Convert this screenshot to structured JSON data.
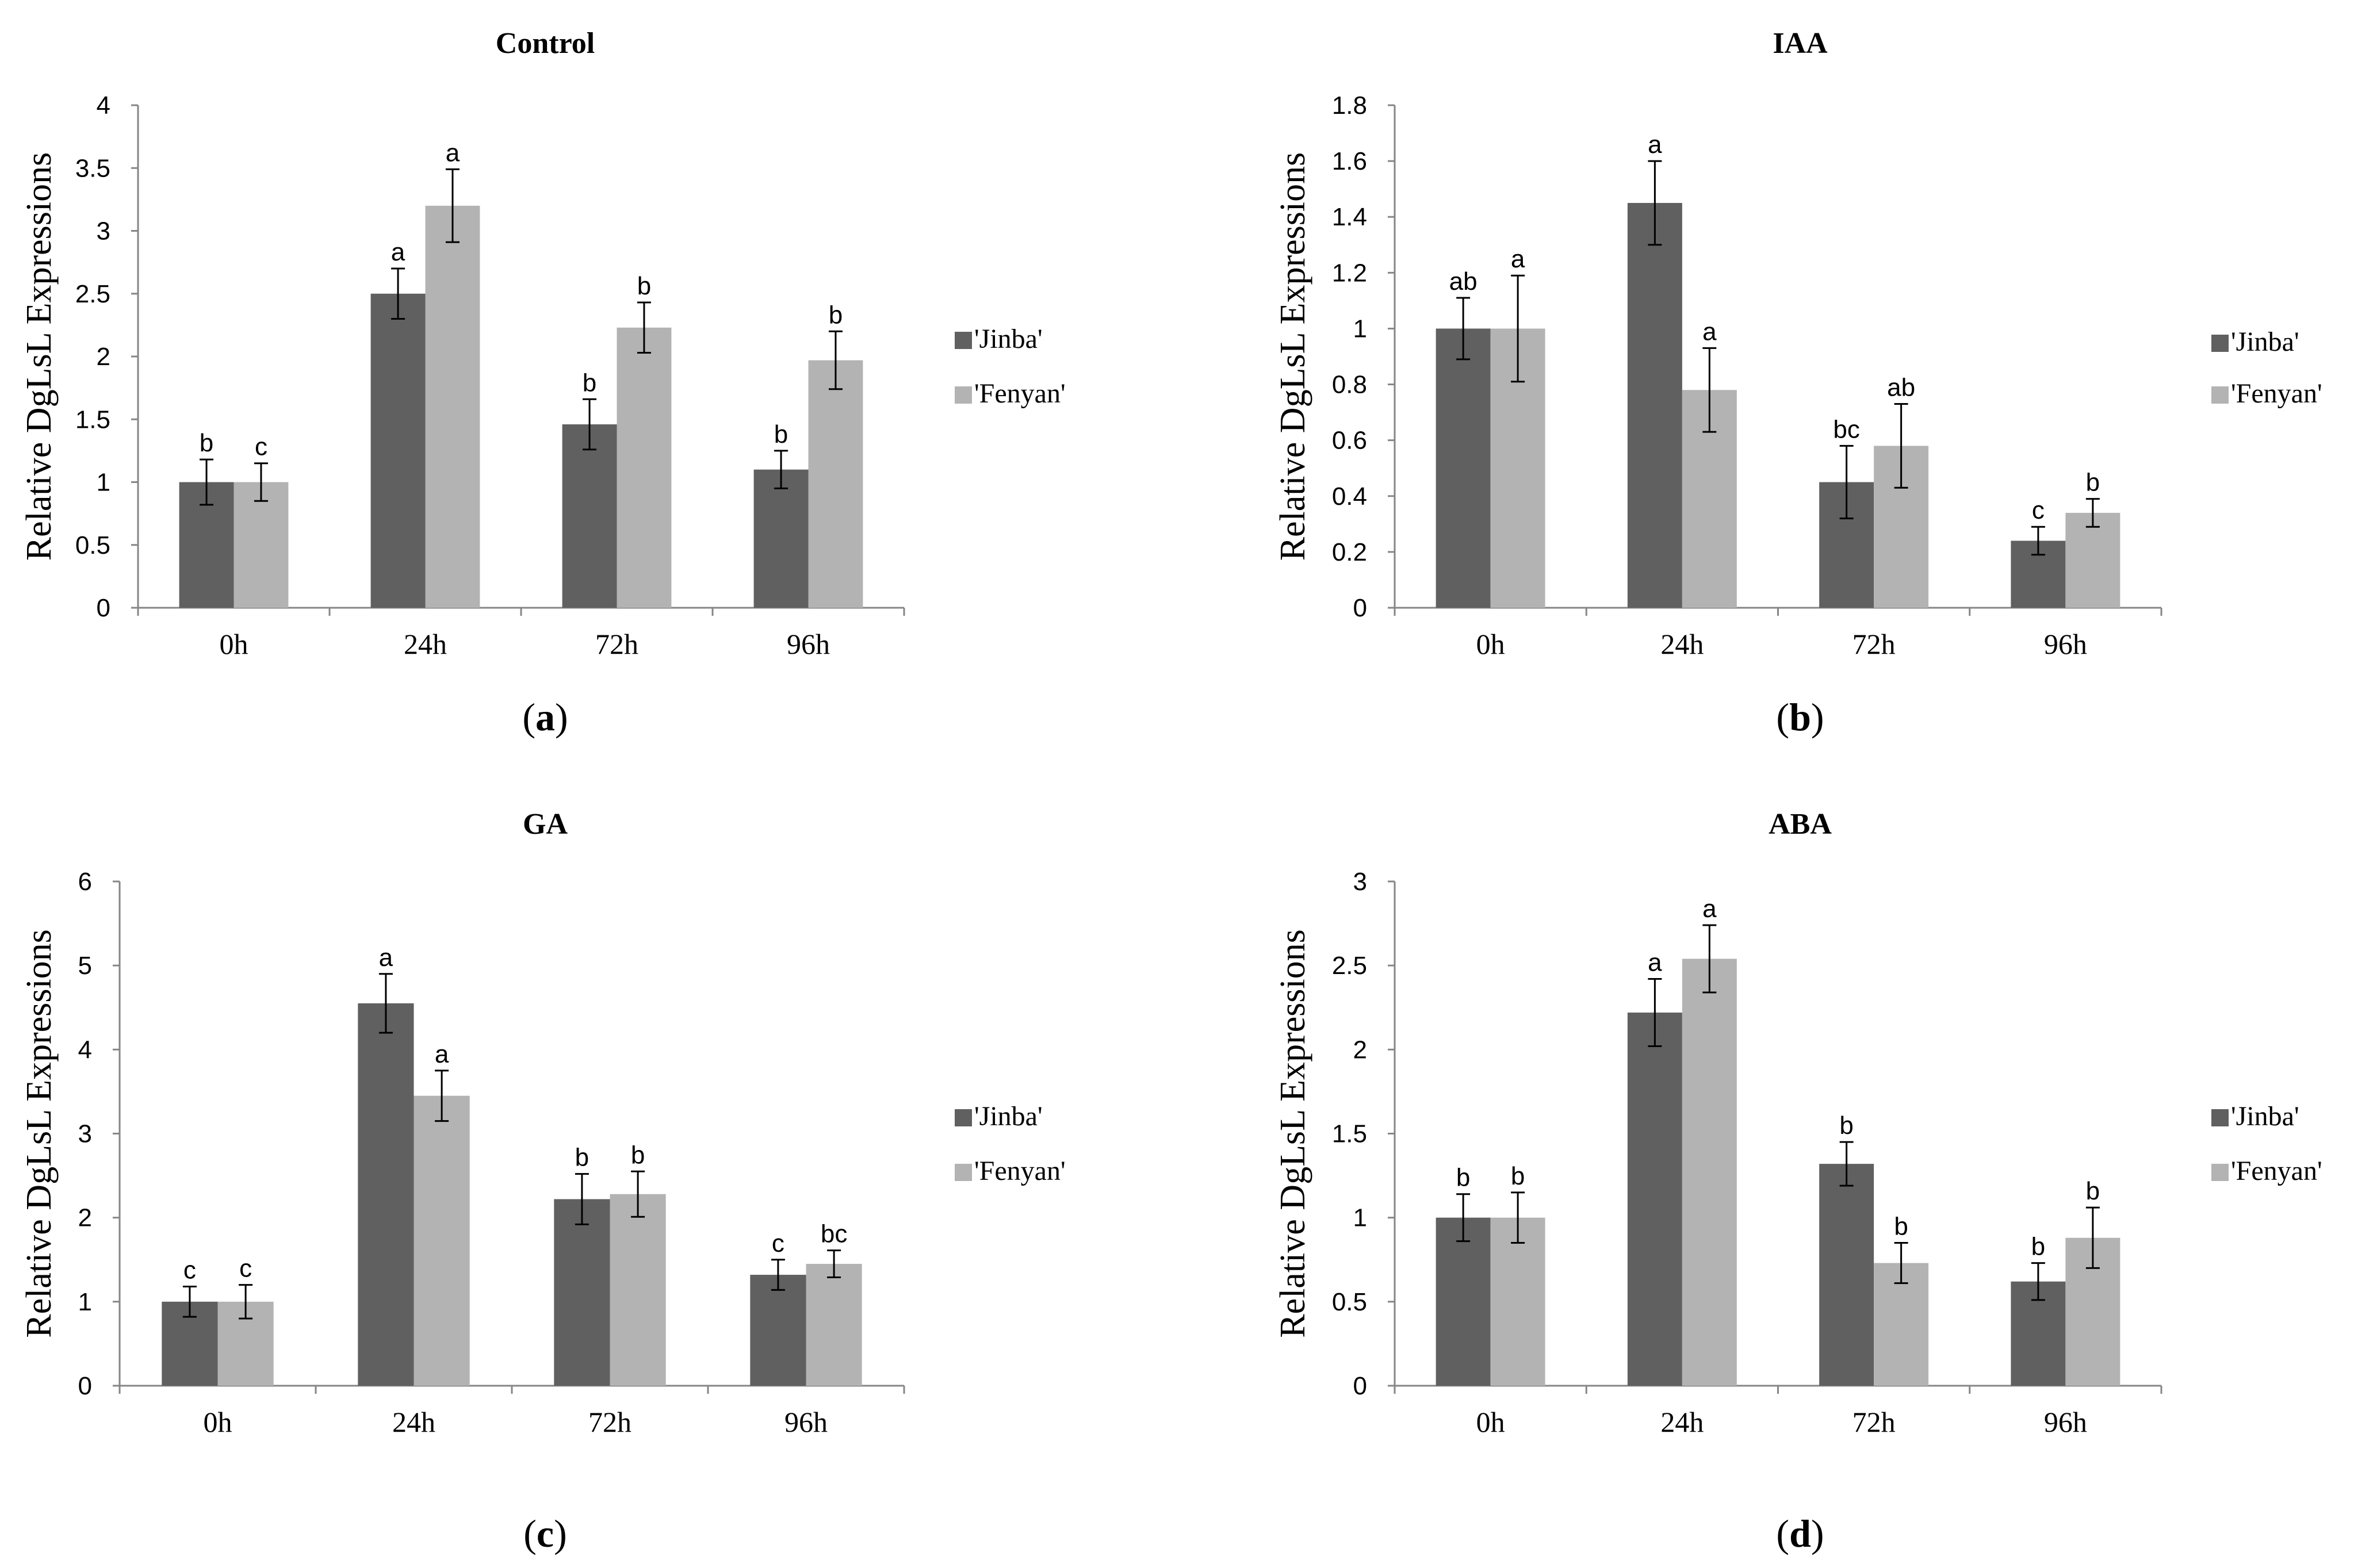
{
  "figure": {
    "series_colors": {
      "Jinba": "#606060",
      "Fenyan": "#b3b3b3"
    },
    "panel_labels": [
      {
        "open": "(",
        "letter": "a",
        "close": ")"
      },
      {
        "open": "(",
        "letter": "b",
        "close": ")"
      },
      {
        "open": "(",
        "letter": "c",
        "close": ")"
      },
      {
        "open": "(",
        "letter": "d",
        "close": ")"
      }
    ]
  },
  "chart_data": [
    {
      "type": "bar",
      "title": "Control",
      "xlabel": "",
      "ylabel": "Relative DgLsL Expressions",
      "categories": [
        "0h",
        "24h",
        "72h",
        "96h"
      ],
      "ylim": [
        0,
        4
      ],
      "yticks": [
        "0",
        "0.5",
        "1",
        "1.5",
        "2",
        "2.5",
        "3",
        "3.5",
        "4"
      ],
      "legend_position": "right",
      "series": [
        {
          "name": "'Jinba'",
          "values": [
            1.0,
            2.5,
            1.46,
            1.1
          ],
          "errors": [
            0.18,
            0.2,
            0.2,
            0.15
          ],
          "labels": [
            "b",
            "a",
            "b",
            "b"
          ]
        },
        {
          "name": "'Fenyan'",
          "values": [
            1.0,
            3.2,
            2.23,
            1.97
          ],
          "errors": [
            0.15,
            0.29,
            0.2,
            0.23
          ],
          "labels": [
            "c",
            "a",
            "b",
            "b"
          ]
        }
      ]
    },
    {
      "type": "bar",
      "title": "IAA",
      "xlabel": "",
      "ylabel": "Relative DgLsL Expressions",
      "categories": [
        "0h",
        "24h",
        "72h",
        "96h"
      ],
      "ylim": [
        0,
        1.8
      ],
      "yticks": [
        "0",
        "0.2",
        "0.4",
        "0.6",
        "0.8",
        "1",
        "1.2",
        "1.4",
        "1.6",
        "1.8"
      ],
      "legend_position": "right",
      "series": [
        {
          "name": "'Jinba'",
          "values": [
            1.0,
            1.45,
            0.45,
            0.24
          ],
          "errors": [
            0.11,
            0.15,
            0.13,
            0.05
          ],
          "labels": [
            "ab",
            "a",
            "bc",
            "c"
          ]
        },
        {
          "name": "'Fenyan'",
          "values": [
            1.0,
            0.78,
            0.58,
            0.34
          ],
          "errors": [
            0.19,
            0.15,
            0.15,
            0.05
          ],
          "labels": [
            "a",
            "a",
            "ab",
            "b"
          ]
        }
      ]
    },
    {
      "type": "bar",
      "title": "GA",
      "xlabel": "",
      "ylabel": "Relative DgLsL Expressions",
      "categories": [
        "0h",
        "24h",
        "72h",
        "96h"
      ],
      "ylim": [
        0,
        6
      ],
      "yticks": [
        "0",
        "1",
        "2",
        "3",
        "4",
        "5",
        "6"
      ],
      "legend_position": "right",
      "series": [
        {
          "name": "'Jinba'",
          "values": [
            1.0,
            4.55,
            2.22,
            1.32
          ],
          "errors": [
            0.18,
            0.35,
            0.3,
            0.18
          ],
          "labels": [
            "c",
            "a",
            "b",
            "c"
          ]
        },
        {
          "name": "'Fenyan'",
          "values": [
            1.0,
            3.45,
            2.28,
            1.45
          ],
          "errors": [
            0.2,
            0.3,
            0.27,
            0.16
          ],
          "labels": [
            "c",
            "a",
            "b",
            "bc"
          ]
        }
      ]
    },
    {
      "type": "bar",
      "title": "ABA",
      "xlabel": "",
      "ylabel": "Relative DgLsL Expressions",
      "categories": [
        "0h",
        "24h",
        "72h",
        "96h"
      ],
      "ylim": [
        0,
        3
      ],
      "yticks": [
        "0",
        "0.5",
        "1",
        "1.5",
        "2",
        "2.5",
        "3"
      ],
      "legend_position": "right",
      "series": [
        {
          "name": "'Jinba'",
          "values": [
            1.0,
            2.22,
            1.32,
            0.62
          ],
          "errors": [
            0.14,
            0.2,
            0.13,
            0.11
          ],
          "labels": [
            "b",
            "a",
            "b",
            "b"
          ]
        },
        {
          "name": "'Fenyan'",
          "values": [
            1.0,
            2.54,
            0.73,
            0.88
          ],
          "errors": [
            0.15,
            0.2,
            0.12,
            0.18
          ],
          "labels": [
            "b",
            "a",
            "b",
            "b"
          ]
        }
      ]
    }
  ]
}
